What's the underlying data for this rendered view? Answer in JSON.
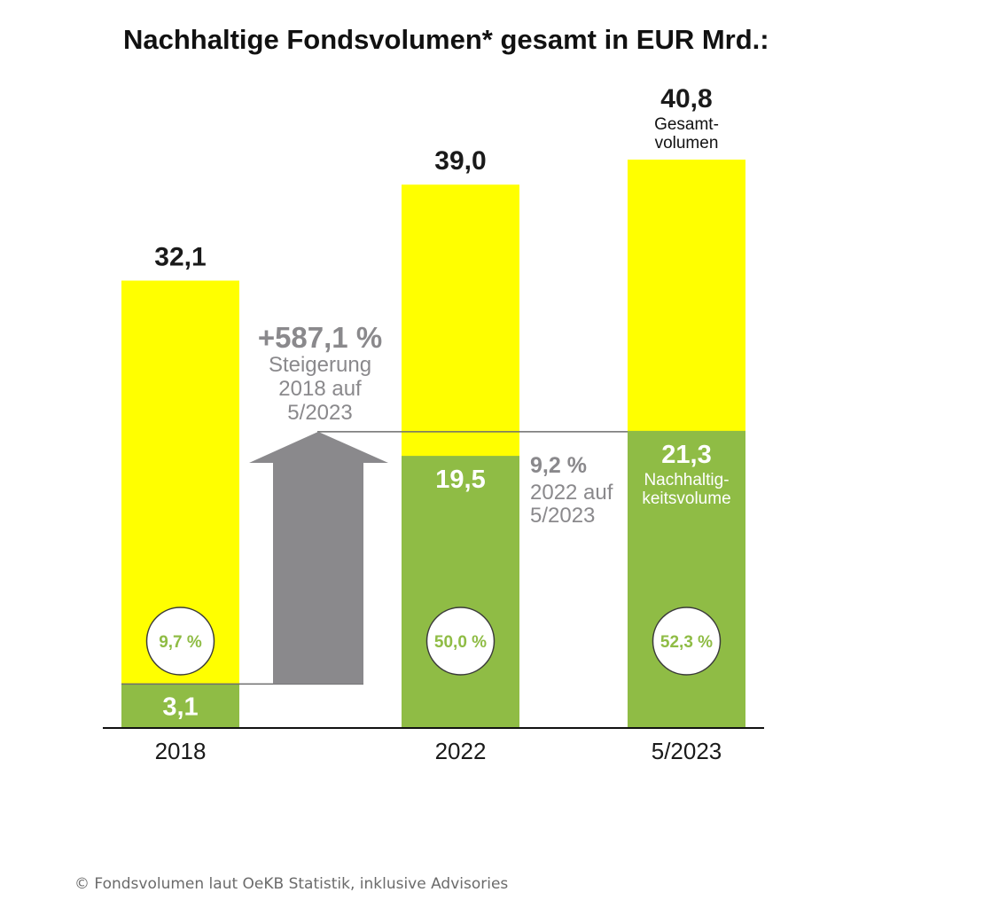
{
  "chart_data": {
    "type": "bar",
    "title": "Nachhaltige Fondsvolumen* gesamt  in EUR Mrd.:",
    "categories": [
      "2018",
      "2022",
      "5/2023"
    ],
    "series": [
      {
        "values": [
          32.1,
          39.0,
          40.8
        ]
      },
      {
        "values": [
          3.1,
          19.5,
          21.3
        ]
      }
    ],
    "total_labels": [
      "32,1",
      "39,0",
      "40,8"
    ],
    "sustainable_labels": [
      "3,1",
      "19,5",
      "21,3"
    ],
    "share_labels": [
      "9,7 %",
      "50,0 %",
      "52,3 %"
    ],
    "last_bar_total_note": [
      "Gesamt-",
      "volumen"
    ],
    "last_bar_sustainable_note": [
      "Nachhaltig-",
      "keitsvolume"
    ],
    "growth_long": {
      "value": "+587,1 %",
      "lines": [
        "Steigerung",
        "2018 auf",
        "5/2023"
      ]
    },
    "growth_short": {
      "value": "9,2 %",
      "lines": [
        "2022 auf",
        "5/2023"
      ]
    },
    "colors": {
      "total": "#ffff00",
      "sustainable": "#8fbc45",
      "arrow": "#8a898c",
      "share_text": "#8fbc45"
    },
    "ylim": [
      0,
      45
    ]
  },
  "footer": "© Fondsvolumen laut OeKB Statistik, inklusive Advisories"
}
